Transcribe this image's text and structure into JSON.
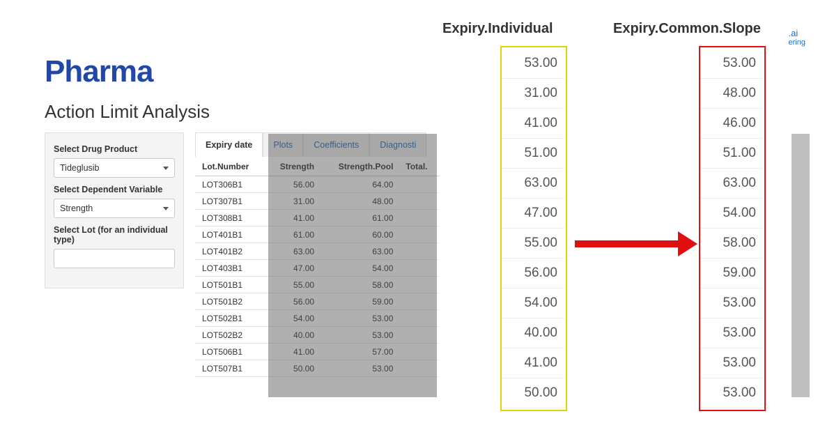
{
  "brand": "Pharma",
  "subtitle": "Action Limit Analysis",
  "corner": {
    "top": ".ai",
    "sub": "ering"
  },
  "sidebar": {
    "drug_label": "Select Drug Product",
    "drug_value": "Tideglusib",
    "depvar_label": "Select Dependent Variable",
    "depvar_value": "Strength",
    "lot_label": "Select Lot (for an individual type)",
    "lot_value": ""
  },
  "tabs": {
    "active": "Expiry date",
    "plots": "Plots",
    "coeffs": "Coefficients",
    "diag": "Diagnosti"
  },
  "table": {
    "cols": {
      "c1": "Lot.Number",
      "c2": "Strength",
      "c3": "Strength.Pool",
      "c4": "Total."
    },
    "rows": [
      {
        "lot": "LOT306B1",
        "s": "56.00",
        "sp": "64.00"
      },
      {
        "lot": "LOT307B1",
        "s": "31.00",
        "sp": "48.00"
      },
      {
        "lot": "LOT308B1",
        "s": "41.00",
        "sp": "61.00"
      },
      {
        "lot": "LOT401B1",
        "s": "61.00",
        "sp": "60.00"
      },
      {
        "lot": "LOT401B2",
        "s": "63.00",
        "sp": "63.00"
      },
      {
        "lot": "LOT403B1",
        "s": "47.00",
        "sp": "54.00"
      },
      {
        "lot": "LOT501B1",
        "s": "55.00",
        "sp": "58.00"
      },
      {
        "lot": "LOT501B2",
        "s": "56.00",
        "sp": "59.00"
      },
      {
        "lot": "LOT502B1",
        "s": "54.00",
        "sp": "53.00"
      },
      {
        "lot": "LOT502B2",
        "s": "40.00",
        "sp": "53.00"
      },
      {
        "lot": "LOT506B1",
        "s": "41.00",
        "sp": "57.00"
      },
      {
        "lot": "LOT507B1",
        "s": "50.00",
        "sp": "53.00"
      }
    ]
  },
  "right": {
    "hdr_individual": "Expiry.Individual",
    "hdr_common": "Expiry.Common.Slope",
    "individual": [
      "53.00",
      "31.00",
      "41.00",
      "51.00",
      "63.00",
      "47.00",
      "55.00",
      "56.00",
      "54.00",
      "40.00",
      "41.00",
      "50.00"
    ],
    "common": [
      "53.00",
      "48.00",
      "46.00",
      "51.00",
      "63.00",
      "54.00",
      "58.00",
      "59.00",
      "53.00",
      "53.00",
      "53.00",
      "53.00"
    ],
    "box_individual_color": "#e6d200",
    "box_common_color": "#e01010",
    "arrow_color": "#e01010"
  }
}
